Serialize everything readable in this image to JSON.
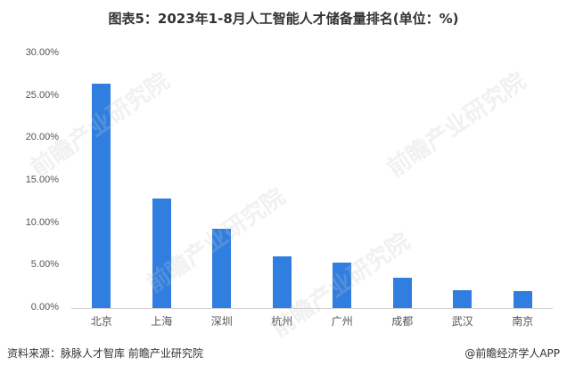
{
  "title": "图表5：2023年1-8月人工智能人才储备量排名(单位：%)",
  "chart_data": {
    "type": "bar",
    "title": "图表5：2023年1-8月人工智能人才储备量排名(单位：%)",
    "categories": [
      "北京",
      "上海",
      "深圳",
      "杭州",
      "广州",
      "成都",
      "武汉",
      "南京"
    ],
    "values": [
      26.4,
      12.9,
      9.3,
      6.1,
      5.4,
      3.6,
      2.1,
      2.0
    ],
    "xlabel": "",
    "ylabel": "",
    "ylim": [
      0,
      30
    ],
    "yticks": [
      "0.00%",
      "5.00%",
      "10.00%",
      "15.00%",
      "20.00%",
      "25.00%",
      "30.00%"
    ],
    "bar_color": "#2f7ee0",
    "grid": false,
    "legend": "none"
  },
  "footer": {
    "source": "资料来源：脉脉人才智库 前瞻产业研究院",
    "credit": "@前瞻经济学人APP"
  },
  "watermark": "前瞻产业研究院"
}
